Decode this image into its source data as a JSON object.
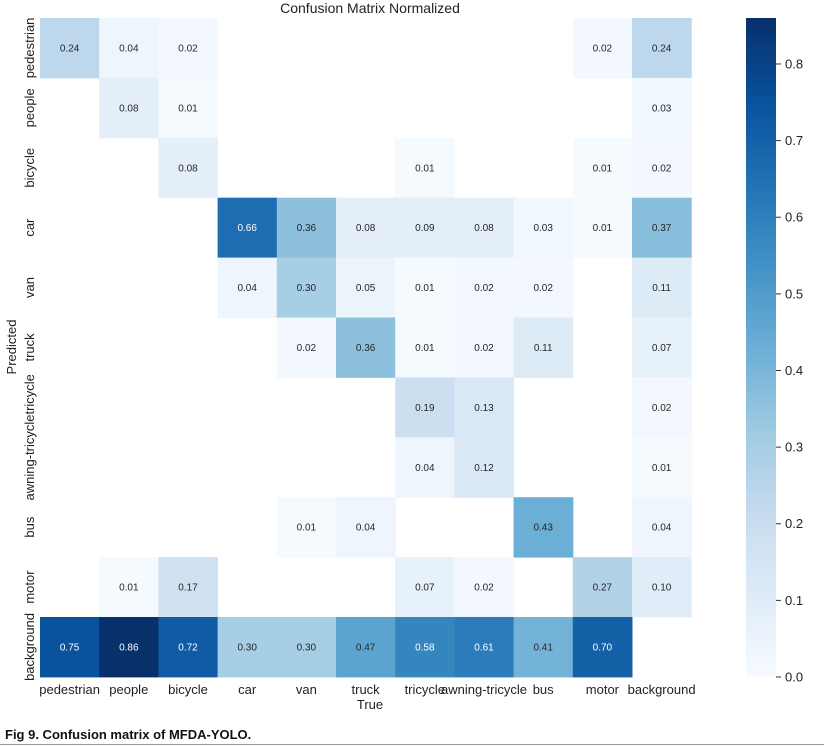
{
  "caption": "Fig 9.  Confusion matrix of MFDA-YOLO.",
  "chart_data": {
    "type": "heatmap",
    "title": "Confusion Matrix Normalized",
    "xlabel": "True",
    "ylabel": "Predicted",
    "x_categories": [
      "pedestrian",
      "people",
      "bicycle",
      "car",
      "van",
      "truck",
      "tricycle",
      "awning-tricycle",
      "bus",
      "motor",
      "background"
    ],
    "y_categories": [
      "pedestrian",
      "people",
      "bicycle",
      "car",
      "van",
      "truck",
      "tricycle",
      "awning-tricycle",
      "bus",
      "motor",
      "background"
    ],
    "y_tick_labels_visible": [
      "pedestrian",
      "people",
      "bicycle",
      "car",
      "van",
      "truck",
      "",
      "awning-tricycletricycle",
      "",
      "bus",
      "motor",
      "background"
    ],
    "values": [
      [
        0.24,
        0.04,
        0.02,
        null,
        null,
        null,
        null,
        null,
        null,
        0.02,
        0.24
      ],
      [
        null,
        0.08,
        0.01,
        null,
        null,
        null,
        null,
        null,
        null,
        null,
        0.03
      ],
      [
        null,
        null,
        0.08,
        null,
        null,
        null,
        0.01,
        null,
        null,
        0.01,
        0.02
      ],
      [
        null,
        null,
        null,
        0.66,
        0.36,
        0.08,
        0.09,
        0.08,
        0.03,
        0.01,
        0.37
      ],
      [
        null,
        null,
        null,
        0.04,
        0.3,
        0.05,
        0.01,
        0.02,
        0.02,
        null,
        0.11
      ],
      [
        null,
        null,
        null,
        null,
        0.02,
        0.36,
        0.01,
        0.02,
        0.11,
        null,
        0.07
      ],
      [
        null,
        null,
        null,
        null,
        null,
        null,
        0.19,
        0.13,
        null,
        null,
        0.02
      ],
      [
        null,
        null,
        null,
        null,
        null,
        null,
        0.04,
        0.12,
        null,
        null,
        0.01
      ],
      [
        null,
        null,
        null,
        null,
        0.01,
        0.04,
        null,
        null,
        0.43,
        null,
        0.04
      ],
      [
        null,
        0.01,
        0.17,
        null,
        null,
        null,
        0.07,
        0.02,
        null,
        0.27,
        0.1
      ],
      [
        0.75,
        0.86,
        0.72,
        0.3,
        0.3,
        0.47,
        0.58,
        0.61,
        0.41,
        0.7,
        null
      ]
    ],
    "colorbar": {
      "min": 0.0,
      "max": 0.86,
      "ticks": [
        "0.0",
        "0.1",
        "0.2",
        "0.3",
        "0.4",
        "0.5",
        "0.6",
        "0.7",
        "0.8"
      ]
    },
    "colormap": "Blues"
  }
}
